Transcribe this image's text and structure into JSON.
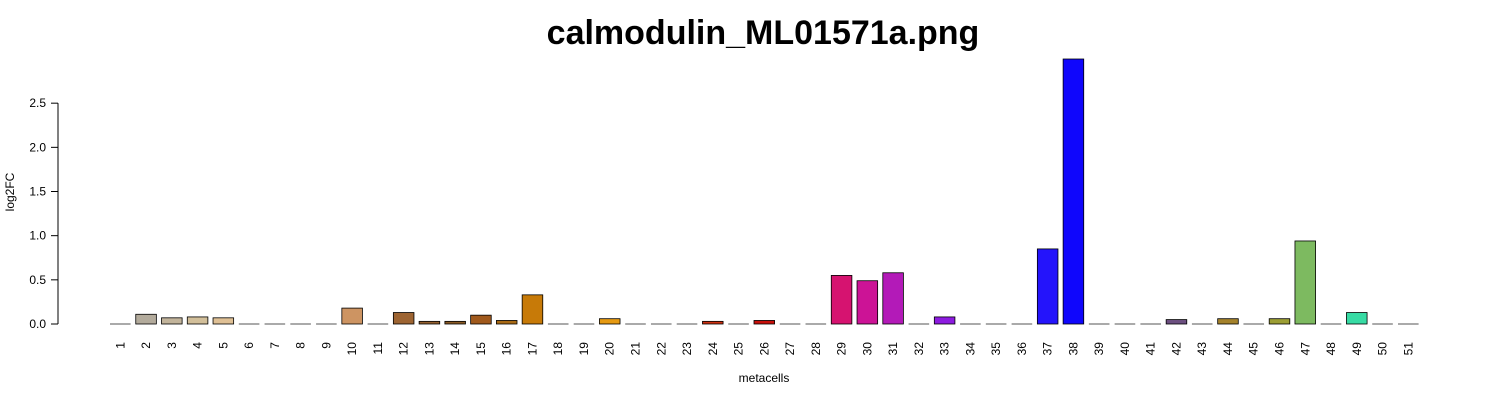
{
  "chart_data": {
    "type": "bar",
    "title": "calmodulin_ML01571a.png",
    "xlabel": "metacells",
    "ylabel": "log2FC",
    "ylim": [
      0,
      3.0
    ],
    "yticks": [
      0.0,
      0.5,
      1.0,
      1.5,
      2.0,
      2.5
    ],
    "ytick_labels": [
      "0.0",
      "0.5",
      "1.0",
      "1.5",
      "2.0",
      "2.5"
    ],
    "grid": false,
    "legend": "none",
    "categories": [
      "1",
      "2",
      "3",
      "4",
      "5",
      "6",
      "7",
      "8",
      "9",
      "10",
      "11",
      "12",
      "13",
      "14",
      "15",
      "16",
      "17",
      "18",
      "19",
      "20",
      "21",
      "22",
      "23",
      "24",
      "25",
      "26",
      "27",
      "28",
      "29",
      "30",
      "31",
      "32",
      "33",
      "34",
      "35",
      "36",
      "37",
      "38",
      "39",
      "40",
      "41",
      "42",
      "43",
      "44",
      "45",
      "46",
      "47",
      "48",
      "49",
      "50",
      "51"
    ],
    "values": [
      0,
      0.11,
      0.07,
      0.08,
      0.07,
      0,
      0,
      0,
      0,
      0.18,
      0,
      0.13,
      0.03,
      0.03,
      0.1,
      0.04,
      0.33,
      0,
      0,
      0.06,
      0,
      0,
      0,
      0.03,
      0,
      0.04,
      0,
      0,
      0.55,
      0.49,
      0.58,
      0,
      0.08,
      0,
      0,
      0,
      0.85,
      3.0,
      0,
      0,
      0,
      0.05,
      0,
      0.06,
      0,
      0.06,
      0.94,
      0,
      0.13,
      0,
      0
    ],
    "colors": [
      "#c8c8c8",
      "#b3ab9c",
      "#c2b49b",
      "#d2bf9a",
      "#dfc095",
      "#cfa678",
      "#c89b6e",
      "#c79866",
      "#c89662",
      "#cd9462",
      "#b07f50",
      "#9d6432",
      "#946030",
      "#8a5a25",
      "#a0591c",
      "#a96a15",
      "#c77a08",
      "#ce8510",
      "#d88f14",
      "#e69a12",
      "#e0621e",
      "#db4a1b",
      "#d43a17",
      "#cf3212",
      "#cc1c0c",
      "#c8100a",
      "#c40a30",
      "#d0103f",
      "#d61370",
      "#cc1396",
      "#b31ab8",
      "#9915c8",
      "#8d1be0",
      "#7a1ef0",
      "#5c1cf7",
      "#4418fb",
      "#2414fb",
      "#0f06fc",
      "#2f25d9",
      "#4a3fb8",
      "#5f4ea0",
      "#6c4f80",
      "#8a6b4a",
      "#a4822b",
      "#a8942e",
      "#9c9e34",
      "#7dba60",
      "#56c98a",
      "#37dba4",
      "#2ad6b4",
      "#a4a4a4"
    ]
  }
}
